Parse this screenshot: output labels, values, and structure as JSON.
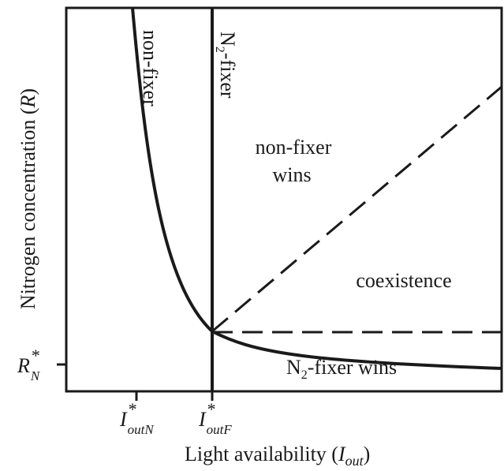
{
  "diagram": {
    "y_axis_label": {
      "prefix": "Nitrogen concentration (",
      "symbol": "R",
      "suffix": ")"
    },
    "x_axis_label": {
      "prefix": "Light availability (",
      "symbol": "I",
      "subscript": "out",
      "suffix": ")"
    },
    "y_tick": {
      "symbol": "R",
      "superscript": "*",
      "subscript": "N"
    },
    "x_ticks": [
      {
        "symbol": "I",
        "superscript": "*",
        "subscript": "outN"
      },
      {
        "symbol": "I",
        "superscript": "*",
        "subscript": "outF"
      }
    ],
    "curve_labels": {
      "nonfixer": "non-fixer",
      "n2fixer": {
        "prefix": "N",
        "subscript": "2",
        "suffix": "-fixer"
      }
    },
    "regions": {
      "nonfixer_wins": [
        "non-fixer",
        "wins"
      ],
      "coexistence": "coexistence",
      "n2fixer_wins": {
        "prefix": "N",
        "subscript": "2",
        "suffix": "-fixer wins"
      }
    }
  }
}
